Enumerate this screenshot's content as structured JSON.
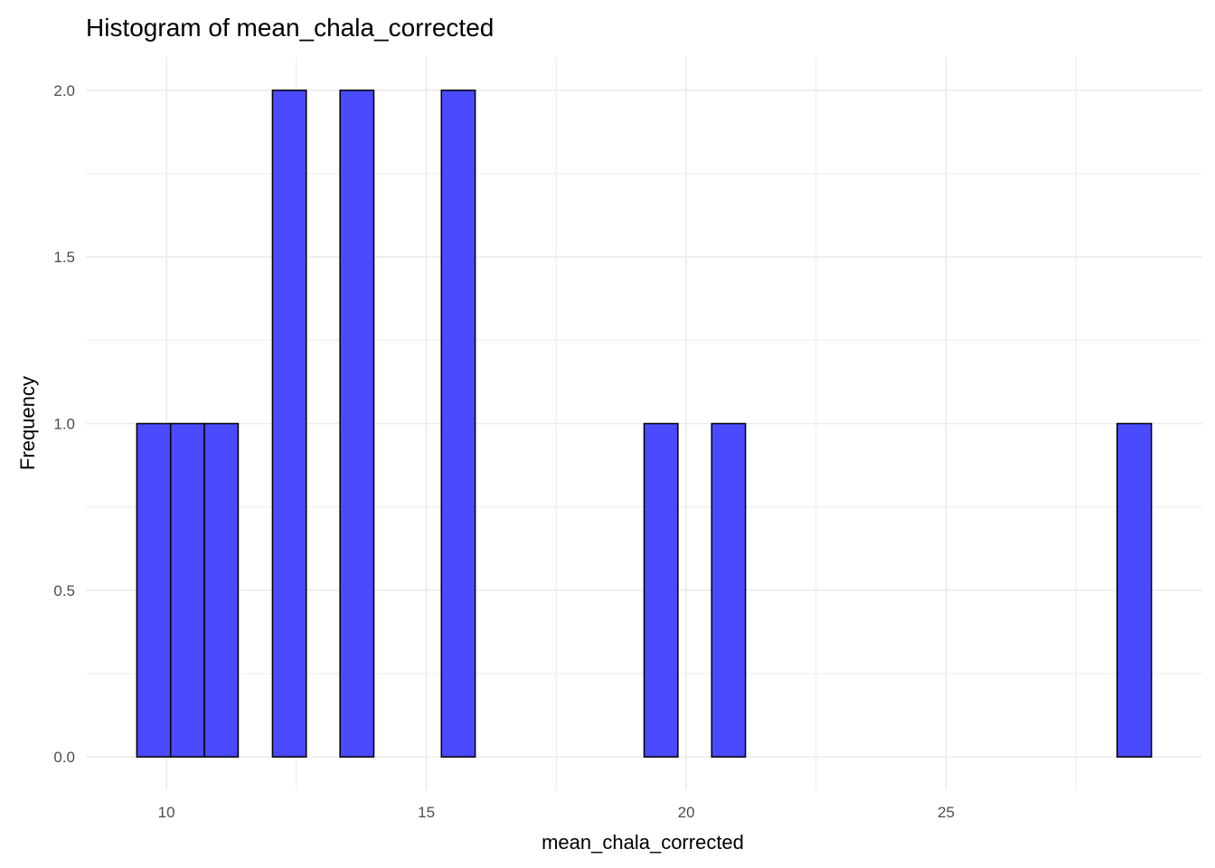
{
  "chart_data": {
    "type": "bar",
    "title": "Histogram of mean_chala_corrected",
    "xlabel": "mean_chala_corrected",
    "ylabel": "Frequency",
    "bins": [
      {
        "x0": 9.43,
        "x1": 10.08,
        "count": 1
      },
      {
        "x0": 10.08,
        "x1": 10.73,
        "count": 1
      },
      {
        "x0": 10.73,
        "x1": 11.38,
        "count": 1
      },
      {
        "x0": 11.38,
        "x1": 12.04,
        "count": 0
      },
      {
        "x0": 12.04,
        "x1": 12.69,
        "count": 2
      },
      {
        "x0": 12.69,
        "x1": 13.34,
        "count": 0
      },
      {
        "x0": 13.34,
        "x1": 13.99,
        "count": 2
      },
      {
        "x0": 13.99,
        "x1": 14.64,
        "count": 0
      },
      {
        "x0": 14.64,
        "x1": 15.29,
        "count": 0
      },
      {
        "x0": 15.29,
        "x1": 15.94,
        "count": 2
      },
      {
        "x0": 15.94,
        "x1": 16.59,
        "count": 0
      },
      {
        "x0": 16.59,
        "x1": 17.24,
        "count": 0
      },
      {
        "x0": 17.24,
        "x1": 17.89,
        "count": 0
      },
      {
        "x0": 17.89,
        "x1": 18.54,
        "count": 0
      },
      {
        "x0": 18.54,
        "x1": 19.19,
        "count": 0
      },
      {
        "x0": 19.19,
        "x1": 19.84,
        "count": 1
      },
      {
        "x0": 19.84,
        "x1": 20.49,
        "count": 0
      },
      {
        "x0": 20.49,
        "x1": 21.14,
        "count": 1
      },
      {
        "x0": 21.14,
        "x1": 21.79,
        "count": 0
      },
      {
        "x0": 21.79,
        "x1": 22.44,
        "count": 0
      },
      {
        "x0": 22.44,
        "x1": 23.09,
        "count": 0
      },
      {
        "x0": 23.09,
        "x1": 23.74,
        "count": 0
      },
      {
        "x0": 23.74,
        "x1": 24.39,
        "count": 0
      },
      {
        "x0": 24.39,
        "x1": 25.04,
        "count": 0
      },
      {
        "x0": 25.04,
        "x1": 25.69,
        "count": 0
      },
      {
        "x0": 25.69,
        "x1": 26.34,
        "count": 0
      },
      {
        "x0": 26.34,
        "x1": 26.99,
        "count": 0
      },
      {
        "x0": 26.99,
        "x1": 27.64,
        "count": 0
      },
      {
        "x0": 27.64,
        "x1": 28.29,
        "count": 0
      },
      {
        "x0": 28.29,
        "x1": 28.95,
        "count": 1
      }
    ],
    "xlim": [
      8.45,
      29.93
    ],
    "ylim": [
      -0.1,
      2.1
    ],
    "x_ticks": [
      10,
      15,
      20,
      25
    ],
    "x_tick_labels": [
      "10",
      "15",
      "20",
      "25"
    ],
    "y_ticks": [
      0,
      0.5,
      1,
      1.5,
      2
    ],
    "y_tick_labels": [
      "0.0",
      "0.5",
      "1.0",
      "1.5",
      "2.0"
    ],
    "grid": true,
    "bar_fill": "#4a4aff",
    "bar_stroke": "#000000",
    "grid_color": "#ebebeb"
  }
}
